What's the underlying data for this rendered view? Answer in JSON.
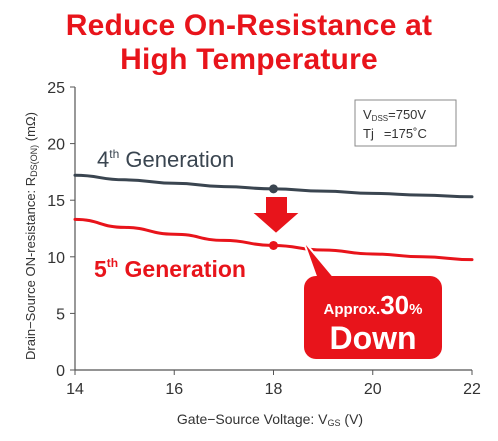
{
  "title_lines": [
    "Reduce On-Resistance at",
    "High Temperature"
  ],
  "colors": {
    "title": "#e8141b",
    "gen4": "#3a4550",
    "gen5": "#e8141b",
    "callout": "#e8141b",
    "axis": "#555555"
  },
  "conditions": {
    "vdss_prefix": "V",
    "vdss_sub": "DSS",
    "vdss_value": "=750V",
    "tj_label": "Tj",
    "tj_value": "=175˚C"
  },
  "callout": {
    "approx": "Approx.",
    "number": "30",
    "percent": "%",
    "word": "Down"
  },
  "chart_data": {
    "type": "line",
    "xlabel_main": "Gate−Source Voltage: V",
    "xlabel_sub": "GS",
    "xlabel_unit": " (V)",
    "ylabel_main": "Drain−Source ON-resistance: R",
    "ylabel_sub": "DS(ON)",
    "ylabel_unit": " (mΩ)",
    "xlim": [
      14,
      22
    ],
    "ylim": [
      0,
      25
    ],
    "xticks": [
      "14",
      "16",
      "18",
      "20",
      "22"
    ],
    "yticks": [
      "0",
      "5",
      "10",
      "15",
      "20",
      "25"
    ],
    "grid": false,
    "series": [
      {
        "name_base": "4",
        "name_sup": "th",
        "name_rest": " Generation",
        "x": [
          14,
          15,
          16,
          17,
          18,
          19,
          20,
          21,
          22
        ],
        "y": [
          17.2,
          16.8,
          16.5,
          16.2,
          16.0,
          15.8,
          15.6,
          15.45,
          15.3
        ],
        "marker": {
          "x": 18,
          "y": 16.0
        }
      },
      {
        "name_base": "5",
        "name_sup": "th",
        "name_rest": " Generation",
        "x": [
          14,
          15,
          16,
          17,
          18,
          19,
          20,
          21,
          22
        ],
        "y": [
          13.3,
          12.6,
          12.0,
          11.45,
          11.0,
          10.6,
          10.25,
          10.0,
          9.75
        ],
        "marker": {
          "x": 18,
          "y": 11.0
        }
      }
    ]
  }
}
